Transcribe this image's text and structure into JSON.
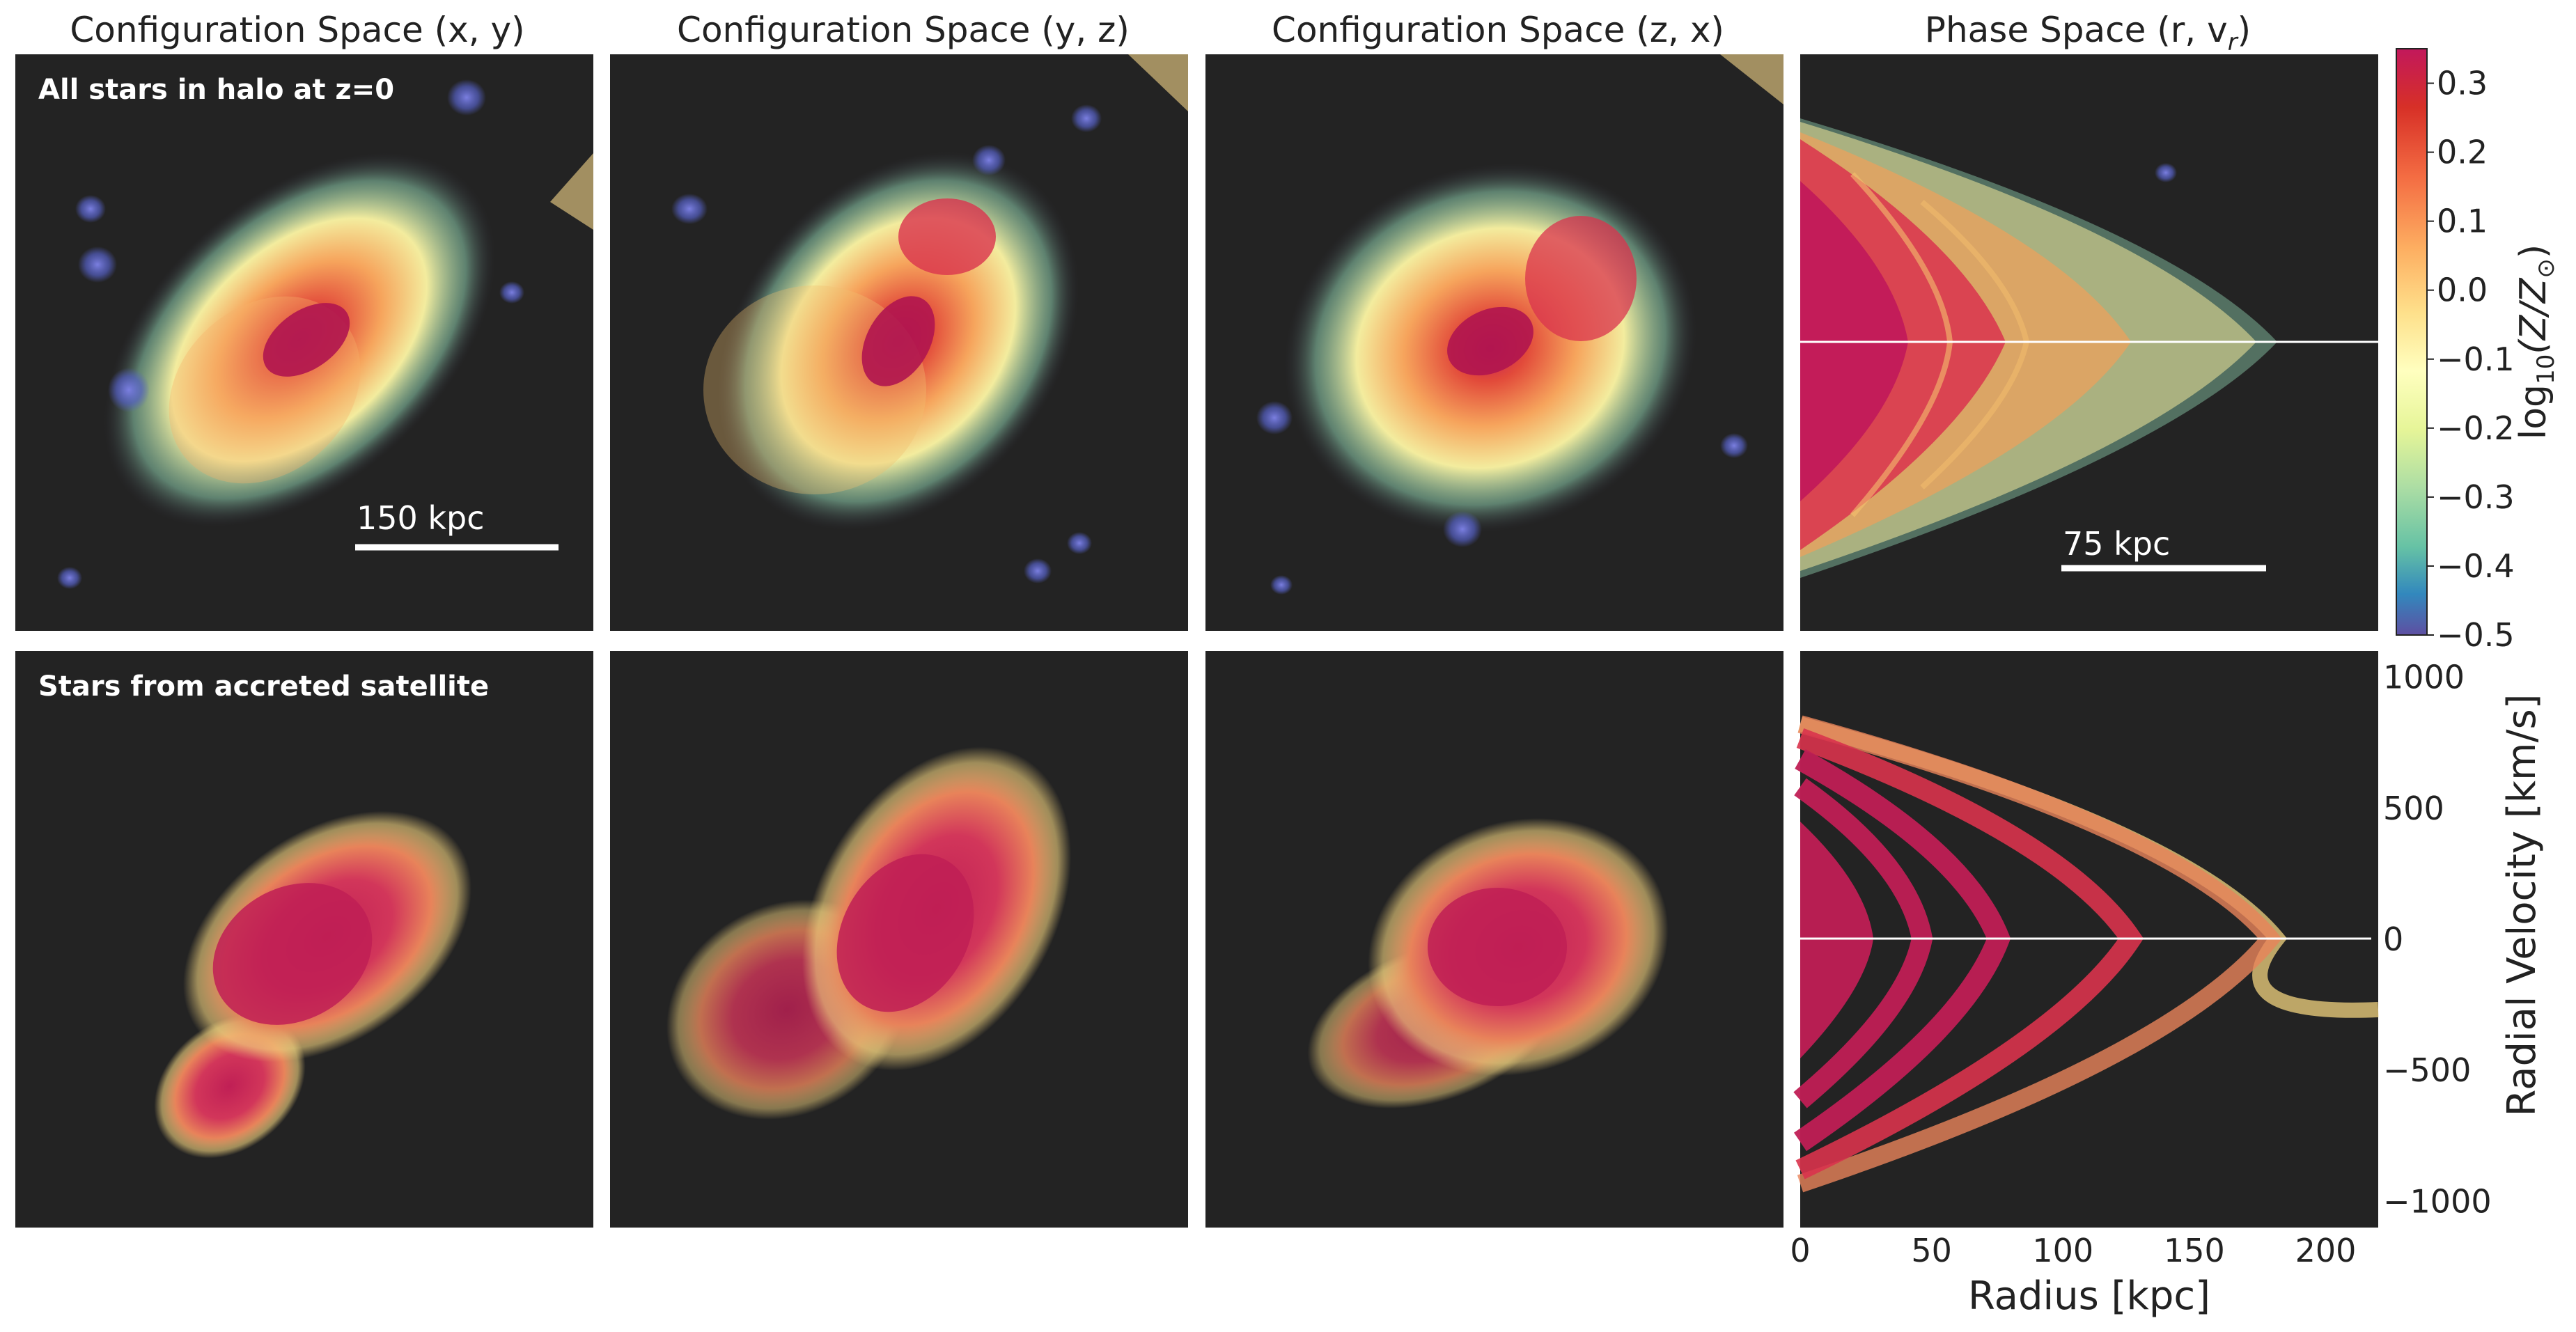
{
  "chart_data": [
    {
      "type": "scatter",
      "panel": "config-xy",
      "title": "Configuration Space (x, y)",
      "rows": [
        "All stars in halo at z=0",
        "Stars from accreted satellite"
      ],
      "scale_bar": "150 kpc"
    },
    {
      "type": "scatter",
      "panel": "config-yz",
      "title": "Configuration Space (y, z)"
    },
    {
      "type": "scatter",
      "panel": "config-zx",
      "title": "Configuration Space (z, x)"
    },
    {
      "type": "scatter",
      "panel": "phase",
      "title_main": "Phase Space (r, v",
      "title_sub": "r",
      "title_close": ")",
      "xlabel": "Radius [kpc]",
      "ylabel": "Radial Velocity [km/s]",
      "xlim": [
        0,
        220
      ],
      "ylim": [
        -1100,
        1100
      ],
      "xticks": [
        0,
        50,
        100,
        150,
        200
      ],
      "xtick_labels": [
        "0",
        "50",
        "100",
        "150",
        "200"
      ],
      "yticks": [
        1000,
        500,
        0,
        -500,
        -1000
      ],
      "ytick_labels": [
        "1000",
        "500",
        "0",
        "−500",
        "−1000"
      ],
      "scale_bar": "75 kpc",
      "zero_line": 0
    },
    {
      "type": "colorbar",
      "label_prefix": "log",
      "label_sub": "10",
      "label_body": "(Z/Z",
      "label_sun": "⊙",
      "label_close": ")",
      "range": [
        -0.5,
        0.35
      ],
      "ticks": [
        0.3,
        0.2,
        0.1,
        0.0,
        -0.1,
        -0.2,
        -0.3,
        -0.4,
        -0.5
      ],
      "tick_labels": [
        "0.3",
        "0.2",
        "0.1",
        "0.0",
        "−0.1",
        "−0.2",
        "−0.3",
        "−0.4",
        "−0.5"
      ],
      "colors": [
        "#c2185b",
        "#d73027",
        "#f46d43",
        "#fdae61",
        "#fee08b",
        "#ffffbf",
        "#e6f598",
        "#abdda4",
        "#66c2a5",
        "#3288bd",
        "#5e4fa2"
      ]
    }
  ],
  "colors": {
    "panel_bg": "#232323",
    "metal_rich": "#d0245e",
    "mid": "#f8c471",
    "metal_poor": "#4575b4"
  }
}
